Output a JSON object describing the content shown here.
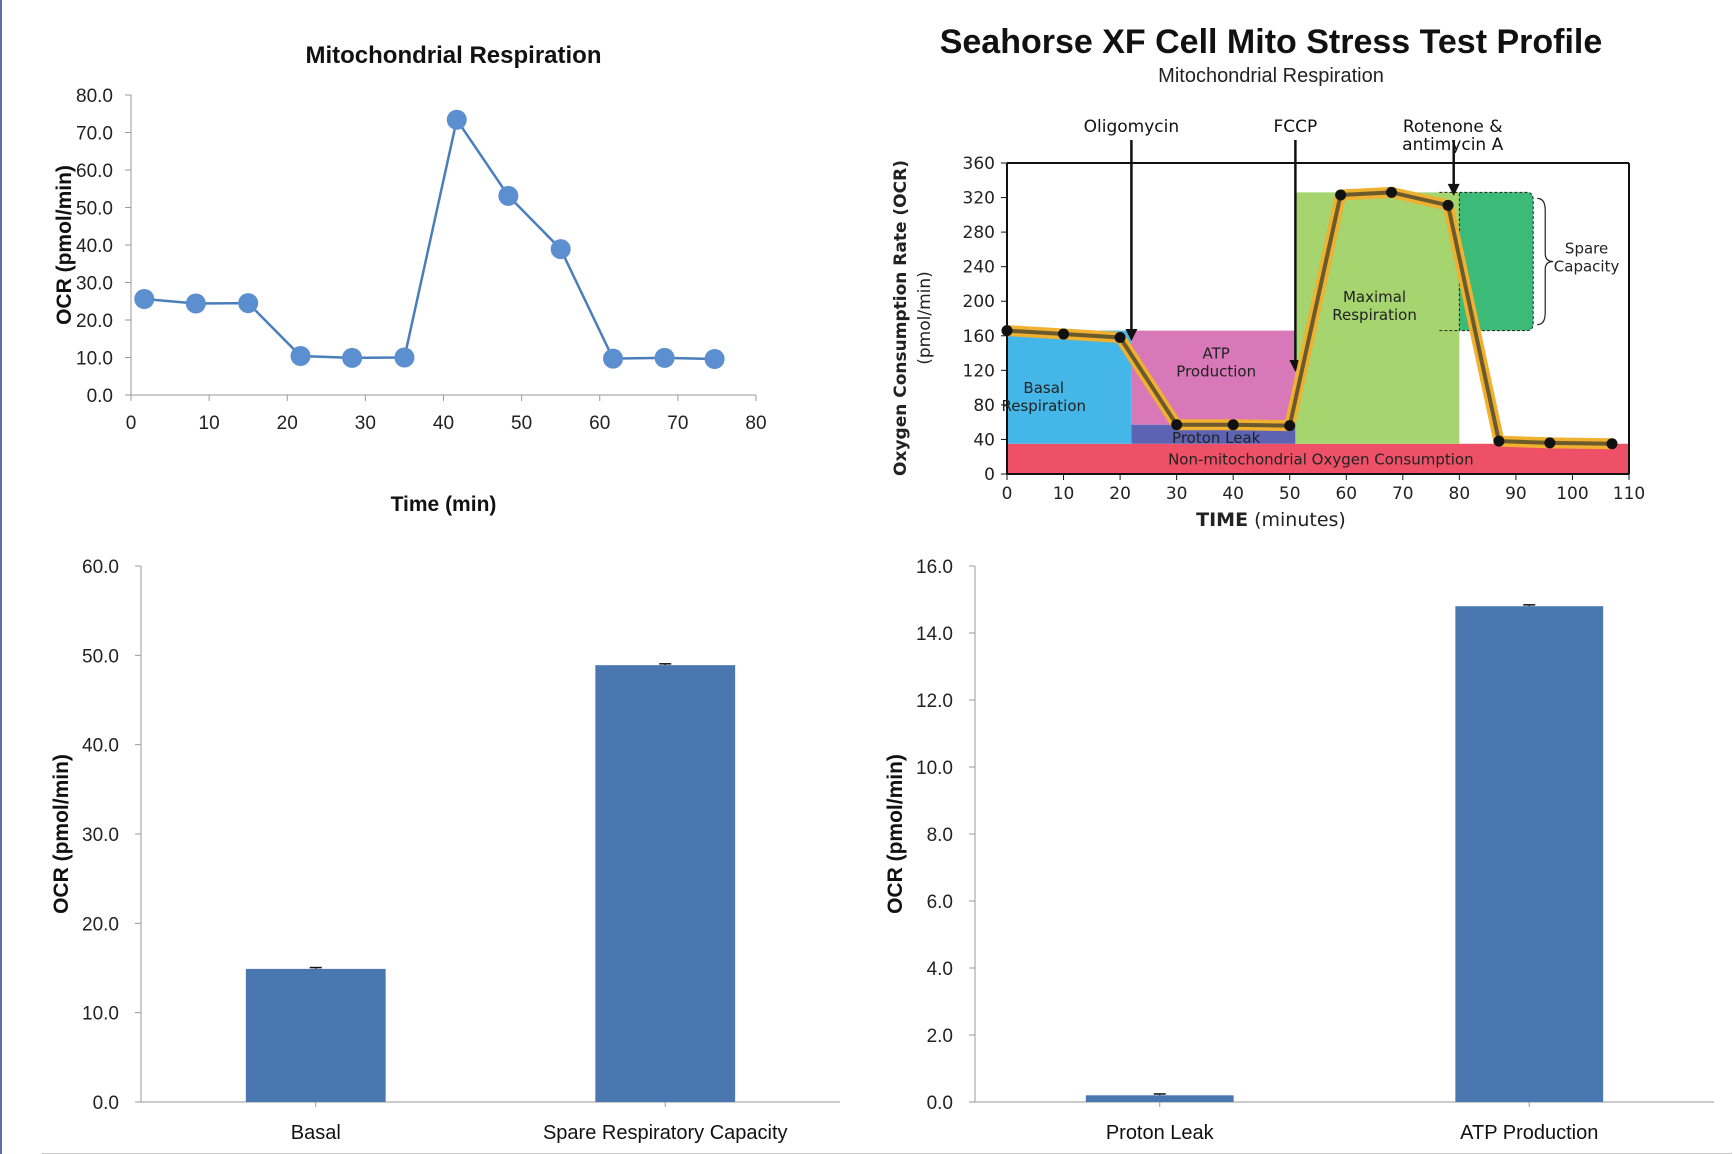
{
  "chart_data": [
    {
      "type": "line",
      "title": "Mitochondrial Respiration",
      "xlabel": "Time (min)",
      "ylabel": "OCR (pmol/min)",
      "xlim": [
        0,
        80
      ],
      "ylim": [
        0,
        80
      ],
      "xticks": [
        "0",
        "10",
        "20",
        "30",
        "40",
        "50",
        "60",
        "70",
        "80"
      ],
      "yticks": [
        "0.0",
        "10.0",
        "20.0",
        "30.0",
        "40.0",
        "50.0",
        "60.0",
        "70.0",
        "80.0"
      ],
      "x": [
        1.7,
        8.3,
        15.0,
        21.7,
        28.3,
        35.0,
        41.7,
        48.3,
        55.0,
        61.7,
        68.3,
        74.7
      ],
      "y": [
        25.6,
        24.4,
        24.5,
        10.4,
        9.9,
        10.0,
        73.4,
        53.1,
        38.9,
        9.7,
        9.9,
        9.6
      ],
      "color": "#4a7ebb",
      "marker_color": "#5b8fd0"
    },
    {
      "type": "line",
      "title": "Seahorse XF Cell Mito Stress Test Profile",
      "subtitle": "Mitochondrial Respiration",
      "ylabel_main": "Oxygen Consumption Rate (OCR)",
      "ylabel_unit": "(pmol/min)",
      "xlabel_main": "TIME",
      "xlabel_unit": "(minutes)",
      "xlim": [
        0,
        110
      ],
      "ylim": [
        0,
        360
      ],
      "xticks": [
        "0",
        "10",
        "20",
        "30",
        "40",
        "50",
        "60",
        "70",
        "80",
        "90",
        "100",
        "110"
      ],
      "yticks": [
        "0",
        "40",
        "80",
        "120",
        "160",
        "200",
        "240",
        "280",
        "320",
        "360"
      ],
      "x": [
        0,
        10,
        20,
        30,
        40,
        50,
        59,
        68,
        78,
        87,
        96,
        107
      ],
      "y": [
        166,
        162,
        158,
        57,
        57,
        56,
        323,
        326,
        311,
        38,
        36,
        35
      ],
      "injections": [
        {
          "label": "Oligomycin",
          "x": 22
        },
        {
          "label": "FCCP",
          "x": 51
        },
        {
          "label_line1": "Rotenone &",
          "label_line2": "antimycin A",
          "x": 79
        }
      ],
      "regions": {
        "basal": {
          "line1": "Basal",
          "line2": "Respiration",
          "color": "#45b6e8"
        },
        "atp": {
          "line1": "ATP",
          "line2": "Production",
          "color": "#d878b8"
        },
        "proton": {
          "label": "Proton Leak",
          "color": "#5d63b3"
        },
        "non_mito": {
          "label": "Non-mitochondrial Oxygen Consumption",
          "color": "#ee5068"
        },
        "maximal": {
          "line1": "Maximal",
          "line2": "Respiration",
          "color": "#a6d46e"
        },
        "spare": {
          "line1": "Spare",
          "line2": "Capacity",
          "color": "#3cba78"
        }
      },
      "trace_color": "#6b5a2c",
      "halo_color": "#f0b030"
    },
    {
      "type": "bar",
      "categories": [
        "Basal",
        "Spare Respiratory Capacity"
      ],
      "values": [
        14.9,
        48.9
      ],
      "errors": [
        0.15,
        0.15
      ],
      "ylabel": "OCR (pmol/min)",
      "ylim": [
        0,
        60
      ],
      "yticks": [
        "0.0",
        "10.0",
        "20.0",
        "30.0",
        "40.0",
        "50.0",
        "60.0"
      ],
      "color": "#4a77b0"
    },
    {
      "type": "bar",
      "categories": [
        "Proton Leak",
        "ATP Production"
      ],
      "values": [
        0.2,
        14.8
      ],
      "errors": [
        0.04,
        0.04
      ],
      "ylabel": "OCR (pmol/min)",
      "ylim": [
        0,
        16
      ],
      "yticks": [
        "0.0",
        "2.0",
        "4.0",
        "6.0",
        "8.0",
        "10.0",
        "12.0",
        "14.0",
        "16.0"
      ],
      "color": "#4a77b0"
    }
  ]
}
